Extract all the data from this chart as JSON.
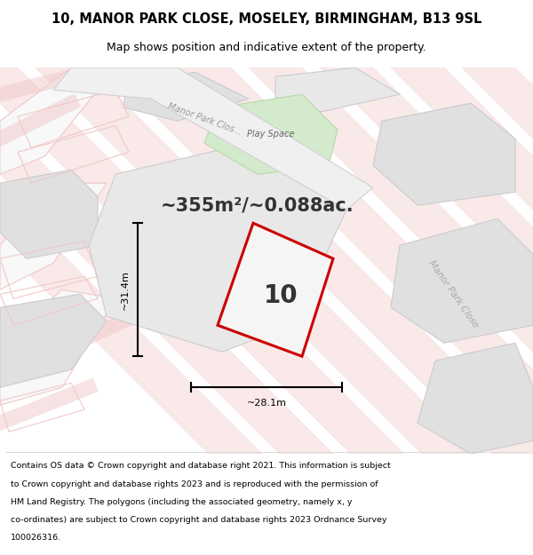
{
  "title_line1": "10, MANOR PARK CLOSE, MOSELEY, BIRMINGHAM, B13 9SL",
  "title_line2": "Map shows position and indicative extent of the property.",
  "area_text": "~355m²/~0.088ac.",
  "property_number": "10",
  "dim_width": "~28.1m",
  "dim_height": "~31.4m",
  "footer_text": "Contains OS data © Crown copyright and database right 2021. This information is subject to Crown copyright and database rights 2023 and is reproduced with the permission of HM Land Registry. The polygons (including the associated geometry, namely x, y co-ordinates) are subject to Crown copyright and database rights 2023 Ordnance Survey 100026316.",
  "bg_color": "#ffffff",
  "map_bg": "#f5f5f5",
  "street_color_light": "#f0c8c8",
  "street_color_road": "#e8e8e8",
  "property_fill": "#e8e8e8",
  "red_outline": "#cc0000",
  "road_label_color": "#aaaaaa",
  "green_area_color": "#d4eacc"
}
